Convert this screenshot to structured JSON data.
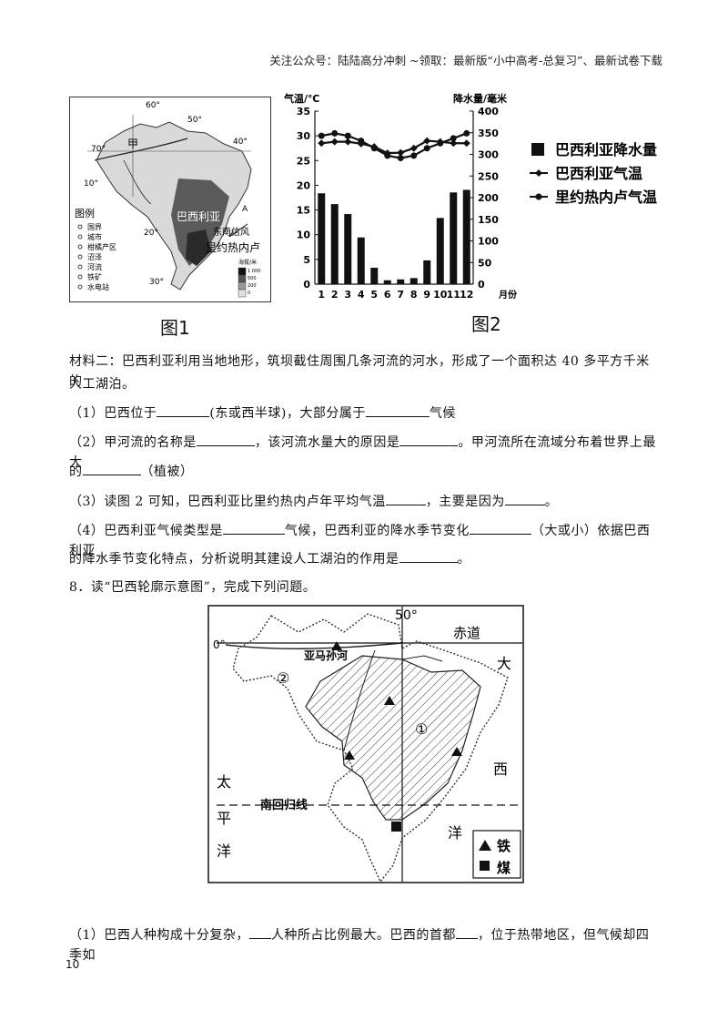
{
  "header": "关注公众号：陆陆高分冲刺 ~领取：最新版“小中高考-总复习”、最新试卷下载",
  "fig1": {
    "caption": "图1",
    "lat_60": "60°",
    "lat_50": "50°",
    "lat_70": "70°",
    "lat_40": "40°",
    "lat_10": "10°",
    "lat_20": "20°",
    "lat_30": "30°",
    "label_jia": "甲",
    "label_a": "A",
    "city_brasilia": "巴西利亚",
    "city_rio": "里约热内卢",
    "trade_wind": "东南信风",
    "legend_title": "图例",
    "legend_items": [
      "国界",
      "城市",
      "柑橘产区",
      "沼泽",
      "河流",
      "铁矿",
      "水电站"
    ],
    "elev_title": "海拔/米",
    "elev_values": [
      "1 000",
      "500",
      "200",
      "0"
    ]
  },
  "chart_data": {
    "type": "bar+line",
    "caption": "图2",
    "ylabel_left": "气温/℃",
    "ylabel_right": "降水量/毫米",
    "xlabel": "月份",
    "categories": [
      "1",
      "2",
      "3",
      "4",
      "5",
      "6",
      "7",
      "8",
      "9",
      "10",
      "11",
      "12"
    ],
    "ylim_left": [
      0,
      35
    ],
    "ylim_right": [
      0,
      400
    ],
    "left_ticks": [
      "0",
      "5",
      "10",
      "15",
      "20",
      "25",
      "30",
      "35"
    ],
    "right_ticks": [
      "0",
      "50",
      "100",
      "150",
      "200",
      "250",
      "300",
      "350",
      "400"
    ],
    "series": [
      {
        "name": "巴西利亚降水量",
        "type": "bar",
        "axis": "right",
        "values": [
          210,
          185,
          162,
          108,
          38,
          9,
          11,
          14,
          55,
          153,
          212,
          218
        ]
      },
      {
        "name": "巴西利亚气温",
        "type": "line",
        "axis": "left",
        "marker": "diamond",
        "values": [
          28.5,
          28.8,
          28.8,
          28.4,
          27.8,
          26.5,
          26.6,
          27.5,
          29,
          28.8,
          28.5,
          28.5
        ]
      },
      {
        "name": "里约热内卢气温",
        "type": "line",
        "axis": "left",
        "marker": "circle",
        "values": [
          30,
          30.5,
          30,
          29,
          27.5,
          26,
          25.5,
          26,
          27.5,
          28.5,
          29.5,
          30.5
        ]
      }
    ]
  },
  "material": {
    "line1": "材料二：巴西利亚利用当地地形，筑坝截住周围几条河流的河水，形成了一个面积达 40 多平方千米的",
    "line2": "人工湖泊。"
  },
  "questions": {
    "q1_a": "（1）巴西位于",
    "q1_b": "(东或西半球)，大部分属于",
    "q1_c": "气候",
    "q2_a": "（2）甲河流的名称是",
    "q2_b": "，该河流水量大的原因是",
    "q2_c": "。甲河流所在流域分布着世界上最大",
    "q2_d": "的",
    "q2_e": "（植被）",
    "q3_a": "（3）读图 2 可知，巴西利亚比里约热内卢年平均气温",
    "q3_b": "，主要是因为",
    "q3_c": "。",
    "q4_a": "（4）巴西利亚气候类型是",
    "q4_b": "气候，巴西利亚的降水季节变化",
    "q4_c": "（大或小）依据巴西利亚",
    "q4_d": "的降水季节变化特点，分析说明其建设人工湖泊的作用是",
    "q4_e": "。"
  },
  "q8": {
    "title": "8．读“巴西轮廓示意图”，完成下列问题。",
    "map": {
      "lon_50": "50°",
      "lat_0": "0°",
      "equator": "赤道",
      "amazon": "亚马孙河",
      "tropic": "南回归线",
      "region_1": "①",
      "region_2": "②",
      "pacific": [
        "太",
        "平",
        "洋"
      ],
      "atlantic": [
        "大",
        "西",
        "洋"
      ],
      "legend_iron": "铁",
      "legend_coal": "煤"
    },
    "sub1_a": "（1）巴西人种构成十分复杂，",
    "sub1_b": "人种所占比例最大。巴西的首都",
    "sub1_c": "，位于热带地区，但气候却四季如"
  },
  "page_number": "10"
}
